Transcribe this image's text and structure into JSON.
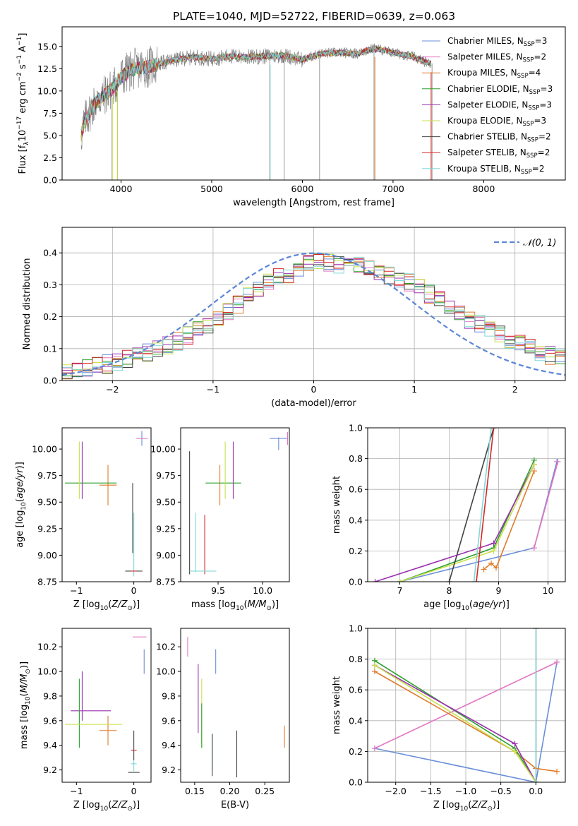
{
  "figure_title": "PLATE=1040, MJD=52722, FIBERID=0639, z=0.063",
  "palette": {
    "chabrier_miles": "#6a8ed8",
    "salpeter_miles": "#e377c2",
    "kroupa_miles": "#e07b2a",
    "chabrier_elodie": "#2ca02c",
    "salpeter_elodie": "#9b30b0",
    "kroupa_elodie": "#c8e04a",
    "chabrier_stelib": "#444444",
    "salpeter_stelib": "#d62728",
    "kroupa_stelib": "#80d8d8",
    "data": "#808080",
    "normal_curve": "#5b86d6"
  },
  "chart_data": [
    {
      "id": "spectrum",
      "type": "line",
      "title": "PLATE=1040, MJD=52722, FIBERID=0639, z=0.063",
      "xlabel": "wavelength [Angstrom, rest frame]",
      "ylabel": "Flux [f",
      "xlim": [
        3350,
        8900
      ],
      "ylim": [
        0,
        17.2
      ],
      "xticks": [
        "4000",
        "5000",
        "6000",
        "7000",
        "8000"
      ],
      "yticks": [
        "0.0",
        "2.5",
        "5.0",
        "7.5",
        "10.0",
        "12.5",
        "15.0"
      ],
      "continuum_knots": {
        "x": [
          3560,
          3600,
          3700,
          3800,
          3900,
          4000,
          4100,
          4200,
          4300,
          4400,
          4600,
          4800,
          5000,
          5200,
          5400,
          5600,
          5800,
          6000,
          6200,
          6400,
          6600,
          6800,
          7000,
          7200,
          7400
        ],
        "y": [
          5.0,
          6.6,
          8.5,
          9.4,
          10.2,
          11.5,
          12.3,
          12.6,
          12.7,
          13.0,
          13.5,
          13.8,
          13.6,
          13.9,
          13.8,
          13.9,
          14.0,
          13.5,
          14.2,
          14.3,
          14.2,
          14.8,
          14.3,
          13.9,
          13.1
        ]
      },
      "legend": [
        {
          "label": "Chabrier MILES, N",
          "sub": "SSP",
          "value": "3",
          "color": "#6a8ed8"
        },
        {
          "label": "Salpeter MILES, N",
          "sub": "SSP",
          "value": "2",
          "color": "#e377c2"
        },
        {
          "label": "Kroupa MILES, N",
          "sub": "SSP",
          "value": "4",
          "color": "#e07b2a"
        },
        {
          "label": "Chabrier ELODIE, N",
          "sub": "SSP",
          "value": "3",
          "color": "#2ca02c"
        },
        {
          "label": "Salpeter ELODIE, N",
          "sub": "SSP",
          "value": "3",
          "color": "#9b30b0"
        },
        {
          "label": "Kroupa ELODIE, N",
          "sub": "SSP",
          "value": "3",
          "color": "#c8e04a"
        },
        {
          "label": "Chabrier STELIB, N",
          "sub": "SSP",
          "value": "2",
          "color": "#444444"
        },
        {
          "label": "Salpeter STELIB, N",
          "sub": "SSP",
          "value": "2",
          "color": "#d62728"
        },
        {
          "label": "Kroupa STELIB, N",
          "sub": "SSP",
          "value": "2",
          "color": "#80d8d8"
        }
      ]
    },
    {
      "id": "residuals",
      "type": "line",
      "xlabel": "(data-model)/error",
      "ylabel": "Normed distribution",
      "xlim": [
        -2.5,
        2.5
      ],
      "ylim": [
        0,
        0.48
      ],
      "xticks": [
        "−2",
        "−1",
        "0",
        "1",
        "2"
      ],
      "yticks": [
        "0.0",
        "0.1",
        "0.2",
        "0.3",
        "0.4"
      ],
      "grid": true,
      "legend_label": "𝒩(0, 1)",
      "bin_width": 0.1,
      "histogram_envelope": {
        "x": [
          -2.5,
          -2.0,
          -1.5,
          -1.0,
          -0.5,
          0.0,
          0.5,
          1.0,
          1.5,
          2.0,
          2.5
        ],
        "y": [
          0.02,
          0.055,
          0.1,
          0.18,
          0.3,
          0.37,
          0.36,
          0.3,
          0.2,
          0.12,
          0.06
        ]
      },
      "normal_curve": {
        "mean": 0,
        "sigma": 1
      }
    },
    {
      "id": "z_vs_age",
      "type": "scatter",
      "xlabel": "Z [log",
      "ylabel": "age  [log",
      "xlim": [
        -1.25,
        0.3
      ],
      "ylim": [
        8.75,
        10.2
      ],
      "xticks": [
        "−1",
        "0"
      ],
      "yticks": [
        "8.75",
        "9.00",
        "9.25",
        "9.50",
        "9.75",
        "10.00"
      ],
      "points": [
        {
          "series": "chabrier_miles",
          "x": 0.14,
          "y": 10.1,
          "xerr": 0.0,
          "yerr": 0.07
        },
        {
          "series": "salpeter_miles",
          "x": 0.14,
          "y": 10.1,
          "xerr": 0.1,
          "yerr": 0.0
        },
        {
          "series": "kroupa_miles",
          "x": -0.45,
          "y": 9.66,
          "xerr": 0.15,
          "yerr": 0.19
        },
        {
          "series": "chabrier_elodie",
          "x": -0.75,
          "y": 9.68,
          "xerr": 0.45,
          "yerr": 0.0
        },
        {
          "series": "salpeter_elodie",
          "x": -0.9,
          "y": 9.8,
          "xerr": 0.0,
          "yerr": 0.27
        },
        {
          "series": "kroupa_elodie",
          "x": -0.95,
          "y": 9.8,
          "xerr": 0.0,
          "yerr": 0.27
        },
        {
          "series": "chabrier_stelib",
          "x": 0.0,
          "y": 8.85,
          "xerr": 0.15,
          "yerr": 0.0
        },
        {
          "series": "chabrier_stelib",
          "x": -0.02,
          "y": 9.35,
          "xerr": 0.0,
          "yerr": 0.33
        },
        {
          "series": "kroupa_stelib",
          "x": 0.0,
          "y": 9.1,
          "xerr": 0.0,
          "yerr": 0.3
        },
        {
          "series": "salpeter_stelib",
          "x": 0.0,
          "y": 8.85,
          "xerr": 0.05,
          "yerr": 0.0
        }
      ]
    },
    {
      "id": "mass_vs_age",
      "type": "scatter",
      "xlabel": "mass [log",
      "ylabel": "",
      "xlim": [
        9.08,
        10.3
      ],
      "ylim": [
        8.75,
        10.2
      ],
      "xticks": [
        "9.5",
        "10.0"
      ],
      "yticks": [
        "8.75",
        "9.00",
        "9.25",
        "9.50",
        "9.75",
        "10.00"
      ],
      "points": [
        {
          "series": "chabrier_miles",
          "x": 10.18,
          "y": 10.1,
          "xerr": 0.1,
          "yerr": 0.0
        },
        {
          "series": "chabrier_miles",
          "x": 10.18,
          "y": 10.05,
          "xerr": 0.0,
          "yerr": 0.06
        },
        {
          "series": "salpeter_miles",
          "x": 10.28,
          "y": 10.1,
          "xerr": 0.0,
          "yerr": 0.06
        },
        {
          "series": "kroupa_miles",
          "x": 9.52,
          "y": 9.66,
          "xerr": 0.0,
          "yerr": 0.19
        },
        {
          "series": "chabrier_elodie",
          "x": 9.56,
          "y": 9.68,
          "xerr": 0.2,
          "yerr": 0.0
        },
        {
          "series": "salpeter_elodie",
          "x": 9.67,
          "y": 9.8,
          "xerr": 0.0,
          "yerr": 0.27
        },
        {
          "series": "kroupa_elodie",
          "x": 9.58,
          "y": 9.8,
          "xerr": 0.0,
          "yerr": 0.27
        },
        {
          "series": "chabrier_stelib",
          "x": 9.18,
          "y": 9.4,
          "xerr": 0.0,
          "yerr": 0.58
        },
        {
          "series": "kroupa_stelib",
          "x": 9.25,
          "y": 9.12,
          "xerr": 0.0,
          "yerr": 0.28
        },
        {
          "series": "salpeter_stelib",
          "x": 9.35,
          "y": 9.1,
          "xerr": 0.0,
          "yerr": 0.28
        },
        {
          "series": "kroupa_stelib",
          "x": 9.33,
          "y": 8.85,
          "xerr": 0.15,
          "yerr": 0.0
        }
      ]
    },
    {
      "id": "age_vs_weight",
      "type": "line",
      "xlabel": "age  [log",
      "ylabel": "mass weight",
      "xlim": [
        6.35,
        10.35
      ],
      "ylim": [
        0,
        1.0
      ],
      "xticks": [
        "7",
        "8",
        "9",
        "10"
      ],
      "yticks": [
        "0.0",
        "0.2",
        "0.4",
        "0.6",
        "0.8",
        "1.0"
      ],
      "grid": true,
      "series": [
        {
          "name": "chabrier_miles",
          "x": [
            7.0,
            9.72,
            10.18
          ],
          "y": [
            0.0,
            0.22,
            0.78
          ]
        },
        {
          "name": "salpeter_miles",
          "x": [
            9.72,
            10.2
          ],
          "y": [
            0.22,
            0.78
          ]
        },
        {
          "name": "kroupa_miles",
          "x": [
            8.7,
            8.85,
            8.95,
            9.72
          ],
          "y": [
            0.08,
            0.12,
            0.09,
            0.72
          ]
        },
        {
          "name": "chabrier_elodie",
          "x": [
            7.0,
            8.9,
            9.72
          ],
          "y": [
            0.0,
            0.22,
            0.79
          ]
        },
        {
          "name": "salpeter_elodie",
          "x": [
            6.5,
            8.9,
            9.72
          ],
          "y": [
            0.0,
            0.25,
            0.76
          ]
        },
        {
          "name": "kroupa_elodie",
          "x": [
            7.0,
            8.9,
            9.72
          ],
          "y": [
            0.0,
            0.2,
            0.76
          ]
        },
        {
          "name": "chabrier_stelib",
          "x": [
            8.0,
            8.9
          ],
          "y": [
            0.0,
            1.0
          ]
        },
        {
          "name": "salpeter_stelib",
          "x": [
            8.55,
            8.9
          ],
          "y": [
            0.0,
            1.0
          ]
        },
        {
          "name": "kroupa_stelib",
          "x": [
            8.5,
            8.85
          ],
          "y": [
            0.0,
            1.0
          ]
        }
      ]
    },
    {
      "id": "z_vs_mass",
      "type": "scatter",
      "xlabel": "Z [log",
      "ylabel": "mass [log",
      "xlim": [
        -1.25,
        0.3
      ],
      "ylim": [
        9.1,
        10.35
      ],
      "xticks": [
        "−1",
        "0"
      ],
      "yticks": [
        "9.2",
        "9.4",
        "9.6",
        "9.8",
        "10.0",
        "10.2"
      ],
      "points": [
        {
          "series": "salpeter_miles",
          "x": 0.1,
          "y": 10.28,
          "xerr": 0.12,
          "yerr": 0.0
        },
        {
          "series": "chabrier_miles",
          "x": 0.18,
          "y": 10.08,
          "xerr": 0.0,
          "yerr": 0.1
        },
        {
          "series": "kroupa_miles",
          "x": -0.45,
          "y": 9.52,
          "xerr": 0.15,
          "yerr": 0.12
        },
        {
          "series": "salpeter_elodie",
          "x": -0.75,
          "y": 9.68,
          "xerr": 0.35,
          "yerr": 0.0
        },
        {
          "series": "salpeter_elodie",
          "x": -0.9,
          "y": 9.8,
          "xerr": 0.0,
          "yerr": 0.2
        },
        {
          "series": "chabrier_elodie",
          "x": -0.95,
          "y": 9.66,
          "xerr": 0.0,
          "yerr": 0.28
        },
        {
          "series": "kroupa_elodie",
          "x": -0.7,
          "y": 9.57,
          "xerr": 0.5,
          "yerr": 0.0
        },
        {
          "series": "chabrier_stelib",
          "x": 0.0,
          "y": 9.18,
          "xerr": 0.1,
          "yerr": 0.0
        },
        {
          "series": "salpeter_stelib",
          "x": 0.0,
          "y": 9.36,
          "xerr": 0.05,
          "yerr": 0.0
        },
        {
          "series": "kroupa_stelib",
          "x": 0.0,
          "y": 9.25,
          "xerr": 0.05,
          "yerr": 0.06
        },
        {
          "series": "chabrier_stelib",
          "x": 0.0,
          "y": 9.4,
          "xerr": 0.0,
          "yerr": 0.12
        }
      ]
    },
    {
      "id": "ebv_vs_mass",
      "type": "scatter",
      "xlabel": "E(B-V)",
      "ylabel": "",
      "xlim": [
        0.13,
        0.285
      ],
      "ylim": [
        9.1,
        10.35
      ],
      "xticks": [
        "0.15",
        "0.20",
        "0.25"
      ],
      "yticks": [
        "9.2",
        "9.4",
        "9.6",
        "9.8",
        "10.0",
        "10.2"
      ],
      "points": [
        {
          "series": "salpeter_miles",
          "x": 0.14,
          "y": 10.2,
          "xerr": 0.0,
          "yerr": 0.08
        },
        {
          "series": "chabrier_miles",
          "x": 0.18,
          "y": 10.08,
          "xerr": 0.0,
          "yerr": 0.1
        },
        {
          "series": "salpeter_elodie",
          "x": 0.155,
          "y": 9.78,
          "xerr": 0.0,
          "yerr": 0.28
        },
        {
          "series": "kroupa_elodie",
          "x": 0.16,
          "y": 9.66,
          "xerr": 0.0,
          "yerr": 0.28
        },
        {
          "series": "chabrier_elodie",
          "x": 0.16,
          "y": 9.56,
          "xerr": 0.0,
          "yerr": 0.18
        },
        {
          "series": "kroupa_stelib",
          "x": 0.175,
          "y": 9.35,
          "xerr": 0.0,
          "yerr": 0.15
        },
        {
          "series": "chabrier_stelib",
          "x": 0.175,
          "y": 9.32,
          "xerr": 0.0,
          "yerr": 0.17
        },
        {
          "series": "chabrier_stelib",
          "x": 0.21,
          "y": 9.33,
          "xerr": 0.0,
          "yerr": 0.19
        },
        {
          "series": "kroupa_miles",
          "x": 0.278,
          "y": 9.47,
          "xerr": 0.0,
          "yerr": 0.09
        }
      ]
    },
    {
      "id": "z_vs_weight",
      "type": "line",
      "xlabel": "Z [log",
      "ylabel": "mass weight",
      "xlim": [
        -2.4,
        0.42
      ],
      "ylim": [
        0,
        1.0
      ],
      "xticks": [
        "−2.0",
        "−1.5",
        "−1.0",
        "−0.5",
        "0.0"
      ],
      "yticks": [
        "0.0",
        "0.2",
        "0.4",
        "0.6",
        "0.8",
        "1.0"
      ],
      "grid": true,
      "series": [
        {
          "name": "chabrier_miles",
          "x": [
            -2.3,
            0.0,
            0.3
          ],
          "y": [
            0.22,
            0.0,
            0.78
          ]
        },
        {
          "name": "salpeter_miles",
          "x": [
            -2.3,
            0.3
          ],
          "y": [
            0.22,
            0.78
          ]
        },
        {
          "name": "kroupa_miles",
          "x": [
            -2.3,
            -0.3,
            0.0,
            0.3
          ],
          "y": [
            0.72,
            0.2,
            0.09,
            0.07
          ]
        },
        {
          "name": "chabrier_elodie",
          "x": [
            -2.3,
            -0.3,
            0.0
          ],
          "y": [
            0.79,
            0.22,
            0.0
          ]
        },
        {
          "name": "salpeter_elodie",
          "x": [
            -2.3,
            -0.3,
            0.0
          ],
          "y": [
            0.76,
            0.25,
            0.0
          ]
        },
        {
          "name": "kroupa_elodie",
          "x": [
            -2.3,
            -0.3,
            0.0
          ],
          "y": [
            0.76,
            0.2,
            0.0
          ]
        },
        {
          "name": "chabrier_stelib",
          "x": [
            0.0,
            0.0
          ],
          "y": [
            0.0,
            1.0
          ]
        },
        {
          "name": "salpeter_stelib",
          "x": [
            0.0,
            0.0
          ],
          "y": [
            0.0,
            1.0
          ]
        },
        {
          "name": "kroupa_stelib",
          "x": [
            0.0,
            0.0
          ],
          "y": [
            0.0,
            1.0
          ]
        }
      ]
    }
  ]
}
